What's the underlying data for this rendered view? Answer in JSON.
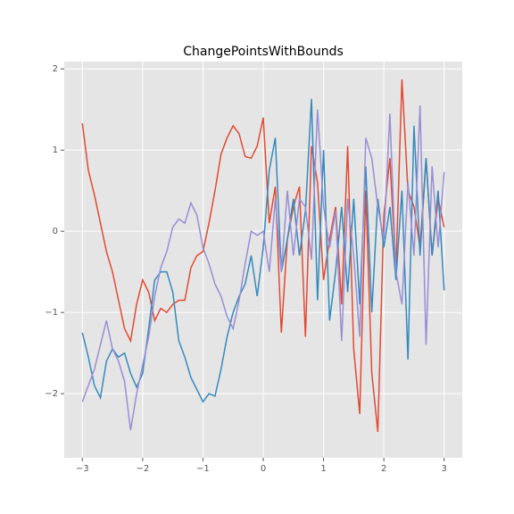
{
  "chart_data": {
    "type": "line",
    "title": "ChangePointsWithBounds",
    "x": [
      -3.0,
      -2.9,
      -2.8,
      -2.7,
      -2.6,
      -2.5,
      -2.4,
      -2.3,
      -2.2,
      -2.1,
      -2.0,
      -1.9,
      -1.8,
      -1.7,
      -1.6,
      -1.5,
      -1.4,
      -1.3,
      -1.2,
      -1.1,
      -1.0,
      -0.9,
      -0.8,
      -0.7,
      -0.6,
      -0.5,
      -0.4,
      -0.3,
      -0.2,
      -0.1,
      0.0,
      0.1,
      0.2,
      0.3,
      0.4,
      0.5,
      0.6,
      0.7,
      0.8,
      0.9,
      1.0,
      1.1,
      1.2,
      1.3,
      1.4,
      1.5,
      1.6,
      1.7,
      1.8,
      1.9,
      2.0,
      2.1,
      2.2,
      2.3,
      2.4,
      2.5,
      2.6,
      2.7,
      2.8,
      2.9,
      3.0
    ],
    "series": [
      {
        "color": "#E24A33",
        "values": [
          1.33,
          0.75,
          0.45,
          0.1,
          -0.25,
          -0.5,
          -0.85,
          -1.2,
          -1.35,
          -0.9,
          -0.6,
          -0.75,
          -1.1,
          -0.95,
          -1.0,
          -0.9,
          -0.85,
          -0.85,
          -0.45,
          -0.3,
          -0.25,
          0.1,
          0.5,
          0.95,
          1.15,
          1.3,
          1.2,
          0.92,
          0.9,
          1.05,
          1.4,
          0.1,
          0.55,
          -1.25,
          -0.1,
          0.3,
          0.55,
          -1.3,
          1.05,
          0.6,
          -0.6,
          -0.1,
          0.3,
          -0.9,
          1.05,
          -1.45,
          -2.25,
          0.5,
          -1.75,
          -2.47,
          0.2,
          0.9,
          -0.5,
          1.87,
          0.5,
          0.3,
          -0.2,
          0.9,
          -0.3,
          0.4,
          0.05
        ]
      },
      {
        "color": "#348ABD",
        "values": [
          -1.25,
          -1.55,
          -1.9,
          -2.05,
          -1.6,
          -1.45,
          -1.55,
          -1.5,
          -1.75,
          -1.92,
          -1.75,
          -1.2,
          -0.6,
          -0.5,
          -0.5,
          -0.75,
          -1.35,
          -1.55,
          -1.8,
          -1.95,
          -2.1,
          -2.0,
          -2.03,
          -1.7,
          -1.3,
          -1.0,
          -0.8,
          -0.65,
          -0.3,
          -0.8,
          -0.2,
          0.75,
          1.15,
          -0.5,
          -0.1,
          0.4,
          -0.3,
          0.25,
          1.63,
          -0.85,
          1.0,
          -1.1,
          -0.5,
          0.3,
          -0.75,
          0.4,
          -0.9,
          0.8,
          -1.0,
          0.4,
          -0.2,
          0.3,
          -0.6,
          0.5,
          -1.58,
          1.3,
          -0.3,
          0.9,
          -0.3,
          0.5,
          -0.73
        ]
      },
      {
        "color": "#988ED5",
        "values": [
          -2.1,
          -1.9,
          -1.7,
          -1.4,
          -1.1,
          -1.45,
          -1.6,
          -1.85,
          -2.45,
          -2.0,
          -1.65,
          -1.3,
          -0.8,
          -0.45,
          -0.25,
          0.05,
          0.15,
          0.1,
          0.35,
          0.2,
          -0.2,
          -0.4,
          -0.65,
          -0.8,
          -1.05,
          -1.2,
          -0.85,
          -0.4,
          0.0,
          -0.05,
          0.0,
          -0.5,
          0.4,
          -0.5,
          0.5,
          -0.3,
          0.4,
          0.3,
          -0.35,
          1.5,
          0.3,
          -0.2,
          0.25,
          -1.35,
          0.4,
          -0.3,
          -1.3,
          1.15,
          0.9,
          0.3,
          -0.1,
          1.45,
          -0.5,
          -0.9,
          0.6,
          -0.3,
          1.55,
          -1.4,
          0.8,
          -0.2,
          0.73
        ]
      }
    ],
    "xlim": [
      -3.3,
      3.3
    ],
    "xticks": [
      {
        "value": -3,
        "label": "−3"
      },
      {
        "value": -2,
        "label": "−2"
      },
      {
        "value": -1,
        "label": "−1"
      },
      0,
      1,
      2,
      3
    ],
    "ylim": [
      -2.79,
      2.09
    ],
    "yticks": [
      {
        "value": -2,
        "label": "−2"
      },
      {
        "value": -1,
        "label": "−1"
      },
      0,
      1,
      2
    ],
    "grid": true
  }
}
